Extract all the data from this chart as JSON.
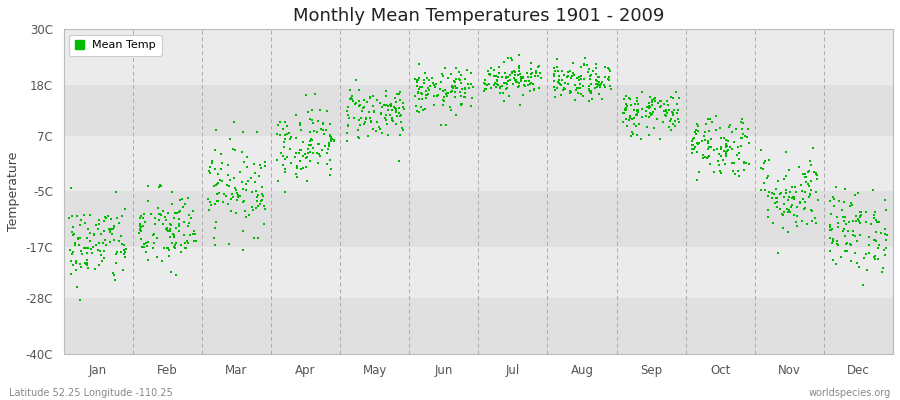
{
  "title": "Monthly Mean Temperatures 1901 - 2009",
  "ylabel": "Temperature",
  "yticks": [
    -40,
    -28,
    -17,
    -5,
    7,
    18,
    30
  ],
  "ytick_labels": [
    "-40C",
    "-28C",
    "-17C",
    "-5C",
    "7C",
    "18C",
    "30C"
  ],
  "ylim": [
    -40,
    30
  ],
  "months": [
    "Jan",
    "Feb",
    "Mar",
    "Apr",
    "May",
    "Jun",
    "Jul",
    "Aug",
    "Sep",
    "Oct",
    "Nov",
    "Dec"
  ],
  "dot_color": "#00bb00",
  "dot_size": 3,
  "background_color": "#ffffff",
  "plot_bg_color": "#e8e8e8",
  "band_colors": [
    "#e0e0e0",
    "#ebebeb"
  ],
  "subtitle_left": "Latitude 52.25 Longitude -110.25",
  "watermark_right": "worldspecies.org",
  "legend_label": "Mean Temp",
  "num_years": 109,
  "seed": 42,
  "monthly_means": [
    -16.5,
    -13.5,
    -4.0,
    5.5,
    12.0,
    16.5,
    19.5,
    18.5,
    12.0,
    5.0,
    -5.5,
    -13.5
  ],
  "monthly_stds": [
    4.5,
    4.5,
    5.0,
    4.0,
    3.0,
    2.5,
    2.0,
    2.0,
    2.5,
    3.5,
    4.5,
    4.5
  ],
  "dashed_line_color": "#aaaaaa",
  "spine_color": "#bbbbbb",
  "tick_label_color": "#555555",
  "title_fontsize": 13,
  "axis_label_fontsize": 9,
  "tick_fontsize": 8.5,
  "legend_fontsize": 8,
  "watermark_fontsize": 7
}
